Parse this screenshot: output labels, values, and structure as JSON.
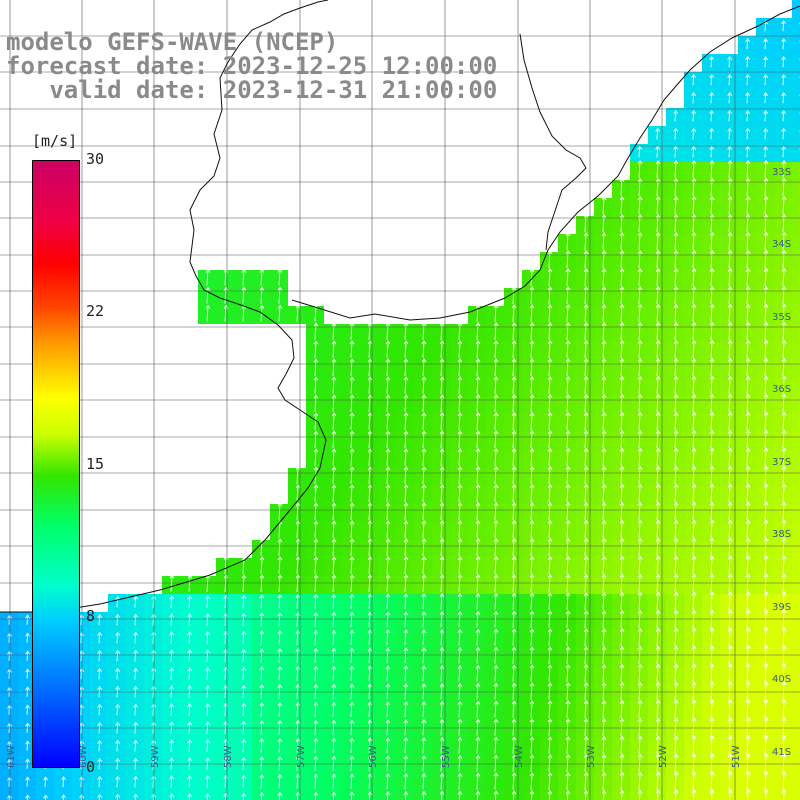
{
  "header": {
    "model": "modelo GEFS-WAVE (NCEP)",
    "forecast_date": "forecast date: 2023-12-25 12:00:00",
    "valid_date": "   valid date: 2023-12-31 21:00:00"
  },
  "colorbar": {
    "unit": "[m/s]",
    "labels": [
      "30",
      "22",
      "15",
      "8",
      "0"
    ],
    "range": [
      0,
      30
    ]
  },
  "grid_labels": {
    "latitudes": [
      "33S",
      "34S",
      "35S",
      "36S",
      "37S",
      "38S",
      "39S",
      "40S",
      "41S"
    ],
    "longitudes": [
      "61W",
      "60W",
      "59W",
      "58W",
      "57W",
      "56W",
      "55W",
      "54W",
      "53W",
      "52W",
      "51W"
    ]
  },
  "colors": {
    "land": "#ffffff",
    "coast": "#111111",
    "grid": "#555555",
    "title": "#8a8a8a"
  }
}
